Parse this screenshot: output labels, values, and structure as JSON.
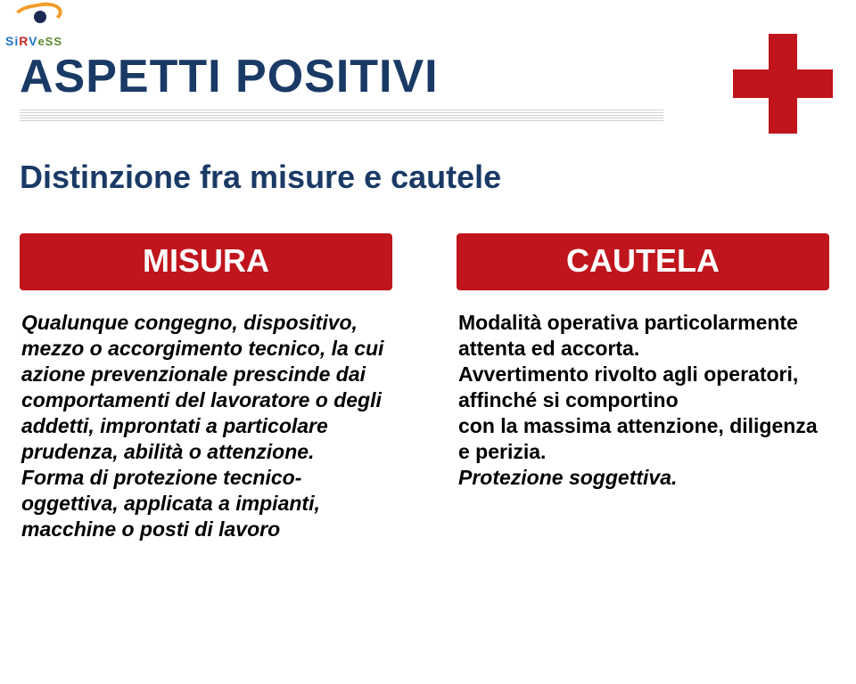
{
  "logo": {
    "text_parts": [
      "Si",
      "R",
      "V",
      "e",
      "SS"
    ]
  },
  "title": {
    "text": "ASPETTI POSITIVI",
    "color": "#1a3a66",
    "fontsize": 52
  },
  "plus_icon": {
    "color": "#c0151c"
  },
  "subtitle": {
    "text": "Distinzione fra misure e cautele",
    "color": "#1a3a66",
    "fontsize": 36
  },
  "labels": {
    "left": {
      "text": "MISURA",
      "bg": "#c0151c",
      "color": "#ffffff"
    },
    "right": {
      "text": "CAUTELA",
      "bg": "#c0151c",
      "color": "#ffffff"
    }
  },
  "columns": {
    "left": {
      "para1": "Qualunque congegno, dispositivo, mezzo o accorgimento tecnico, la cui azione prevenzionale prescinde dai comportamenti del lavoratore o degli addetti, improntati a particolare prudenza, abilità o attenzione.",
      "para2": "Forma di protezione tecnico-oggettiva, applicata a impianti, macchine o posti di lavoro"
    },
    "right": {
      "para1": "Modalità operativa particolarmente attenta ed accorta.",
      "para2a": "Avvertimento rivolto agli operatori, affinché si comportino",
      "para2b": "con la massima attenzione, diligenza e perizia.",
      "para3": "Protezione soggettiva."
    }
  },
  "background": "#ffffff"
}
